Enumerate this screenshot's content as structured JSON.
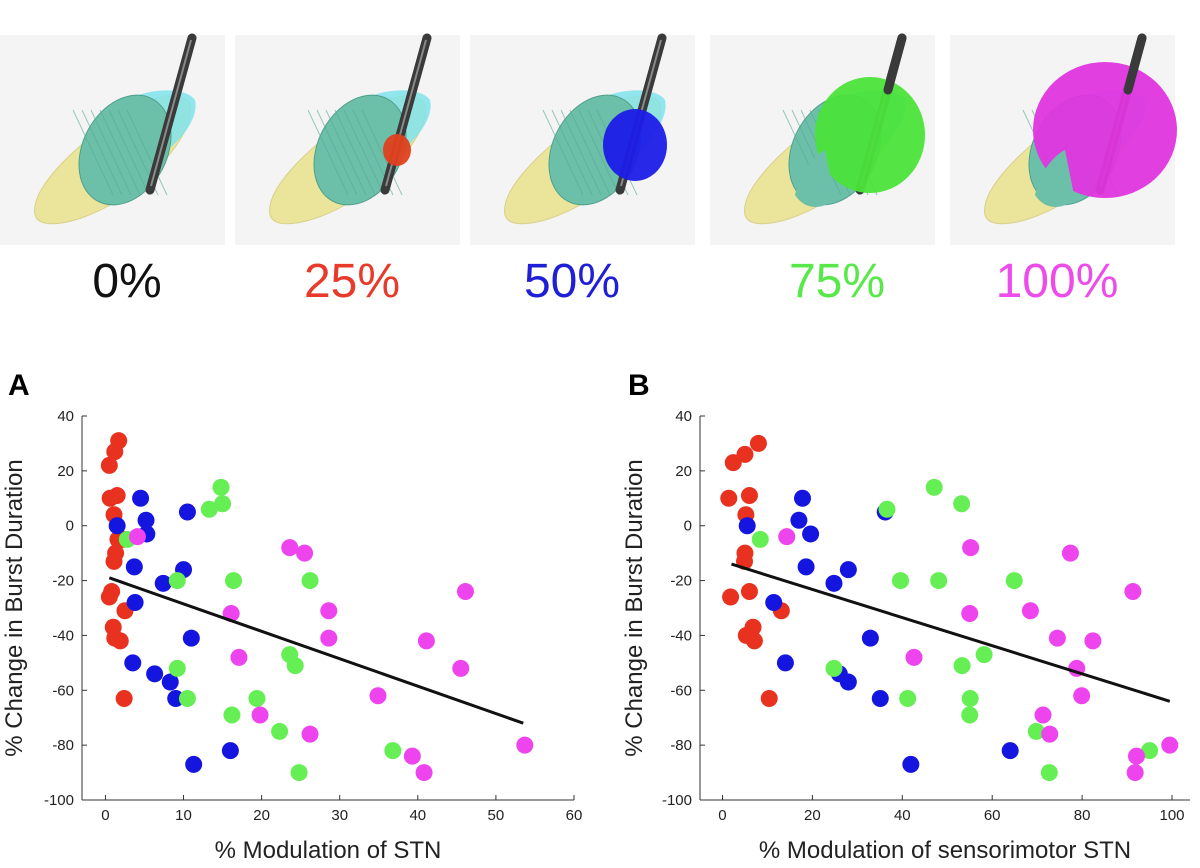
{
  "renderings": {
    "colors": {
      "electrode": "#3a3a3a",
      "stn": "#6cbfa8",
      "sensorimotor": "#eae59a",
      "associative": "#7fe3ec"
    },
    "items": [
      {
        "label": "0%",
        "color": "#111111",
        "vta_color": null
      },
      {
        "label": "25%",
        "color": "#e83a2a",
        "vta_color": "#e0401e"
      },
      {
        "label": "50%",
        "color": "#1f1fd8",
        "vta_color": "#1c1ce8"
      },
      {
        "label": "75%",
        "color": "#58e84a",
        "vta_color": "#4be33a"
      },
      {
        "label": "100%",
        "color": "#ec4ce8",
        "vta_color": "#e035df"
      }
    ]
  },
  "group_colors": {
    "25%": "#e8321f",
    "50%": "#1515e0",
    "75%": "#66ee55",
    "100%": "#ee44ee"
  },
  "chart_data": [
    {
      "panel": "A",
      "type": "scatter",
      "xlabel": "% Modulation of STN",
      "ylabel": "% Change in Burst Duration",
      "xlim": [
        -3,
        60
      ],
      "ylim": [
        -100,
        40
      ],
      "xticks": [
        0,
        10,
        20,
        30,
        40,
        50,
        60
      ],
      "yticks": [
        -100,
        -80,
        -60,
        -40,
        -20,
        0,
        20,
        40
      ],
      "grid": false,
      "fit_line": {
        "x": [
          0.5,
          53.5
        ],
        "y": [
          -19,
          -72
        ]
      },
      "series": [
        {
          "group": "25%",
          "points": [
            [
              1.7,
              31
            ],
            [
              1.2,
              27
            ],
            [
              0.5,
              22
            ],
            [
              0.6,
              10
            ],
            [
              1.5,
              11
            ],
            [
              1.1,
              4
            ],
            [
              1.6,
              -5
            ],
            [
              1.3,
              -10
            ],
            [
              1.1,
              -13
            ],
            [
              2.2,
              -5
            ],
            [
              0.8,
              -24
            ],
            [
              0.5,
              -26
            ],
            [
              2.5,
              -31
            ],
            [
              1.0,
              -37
            ],
            [
              1.2,
              -41
            ],
            [
              1.9,
              -42
            ],
            [
              2.4,
              -63
            ]
          ]
        },
        {
          "group": "50%",
          "points": [
            [
              4.5,
              10
            ],
            [
              1.5,
              0
            ],
            [
              5.2,
              2
            ],
            [
              5.3,
              -3
            ],
            [
              10.5,
              5
            ],
            [
              3.7,
              -15
            ],
            [
              10.0,
              -16
            ],
            [
              7.4,
              -21
            ],
            [
              3.8,
              -28
            ],
            [
              11,
              -41
            ],
            [
              3.5,
              -50
            ],
            [
              6.3,
              -54
            ],
            [
              8.3,
              -57
            ],
            [
              9.0,
              -63
            ],
            [
              16,
              -82
            ],
            [
              11.3,
              -87
            ]
          ]
        },
        {
          "group": "75%",
          "points": [
            [
              14.8,
              14
            ],
            [
              15.0,
              8
            ],
            [
              13.3,
              6
            ],
            [
              2.8,
              -5
            ],
            [
              16.4,
              -20
            ],
            [
              9.2,
              -20
            ],
            [
              26.2,
              -20
            ],
            [
              23.6,
              -47
            ],
            [
              24.3,
              -51
            ],
            [
              9.2,
              -52
            ],
            [
              10.5,
              -63
            ],
            [
              19.4,
              -63
            ],
            [
              16.2,
              -69
            ],
            [
              22.3,
              -75
            ],
            [
              36.8,
              -82
            ],
            [
              24.8,
              -90
            ]
          ]
        },
        {
          "group": "100%",
          "points": [
            [
              4.1,
              -4
            ],
            [
              23.6,
              -8
            ],
            [
              25.5,
              -10
            ],
            [
              46.1,
              -24
            ],
            [
              16.1,
              -32
            ],
            [
              28.6,
              -31
            ],
            [
              28.6,
              -41
            ],
            [
              41.1,
              -42
            ],
            [
              17.1,
              -48
            ],
            [
              45.5,
              -52
            ],
            [
              34.9,
              -62
            ],
            [
              19.8,
              -69
            ],
            [
              26.2,
              -76
            ],
            [
              39.3,
              -84
            ],
            [
              53.7,
              -80
            ],
            [
              40.8,
              -90
            ]
          ]
        }
      ]
    },
    {
      "panel": "B",
      "type": "scatter",
      "xlabel": "% Modulation of sensorimotor STN",
      "ylabel": "% Change in Burst Duration",
      "xlim": [
        -5,
        104
      ],
      "ylim": [
        -100,
        40
      ],
      "xticks": [
        0,
        20,
        40,
        60,
        80,
        100
      ],
      "yticks": [
        -100,
        -80,
        -60,
        -40,
        -20,
        0,
        20,
        40
      ],
      "grid": false,
      "fit_line": {
        "x": [
          2,
          99.5
        ],
        "y": [
          -14,
          -64
        ]
      },
      "series": [
        {
          "group": "25%",
          "points": [
            [
              8.0,
              30
            ],
            [
              5.0,
              26
            ],
            [
              2.4,
              23
            ],
            [
              6.0,
              11
            ],
            [
              1.4,
              10
            ],
            [
              5.2,
              4
            ],
            [
              5.0,
              -10
            ],
            [
              4.9,
              -13
            ],
            [
              6.0,
              -24
            ],
            [
              1.8,
              -26
            ],
            [
              13.1,
              -31
            ],
            [
              6.8,
              -37
            ],
            [
              5.3,
              -40
            ],
            [
              7.1,
              -42
            ],
            [
              10.4,
              -63
            ]
          ]
        },
        {
          "group": "50%",
          "points": [
            [
              17.8,
              10
            ],
            [
              17.0,
              2
            ],
            [
              5.5,
              0
            ],
            [
              19.6,
              -3
            ],
            [
              36.2,
              5
            ],
            [
              18.6,
              -15
            ],
            [
              28.0,
              -16
            ],
            [
              24.8,
              -21
            ],
            [
              11.4,
              -28
            ],
            [
              32.9,
              -41
            ],
            [
              14.0,
              -50
            ],
            [
              26.0,
              -54
            ],
            [
              28.0,
              -57
            ],
            [
              35.1,
              -63
            ],
            [
              64.0,
              -82
            ],
            [
              41.9,
              -87
            ]
          ]
        },
        {
          "group": "75%",
          "points": [
            [
              47.1,
              14
            ],
            [
              53.2,
              8
            ],
            [
              36.6,
              6
            ],
            [
              8.4,
              -5
            ],
            [
              39.6,
              -20
            ],
            [
              48.1,
              -20
            ],
            [
              64.9,
              -20
            ],
            [
              58.2,
              -47
            ],
            [
              53.3,
              -51
            ],
            [
              24.8,
              -52
            ],
            [
              55.1,
              -63
            ],
            [
              41.2,
              -63
            ],
            [
              55.0,
              -69
            ],
            [
              69.8,
              -75
            ],
            [
              95.0,
              -82
            ],
            [
              72.7,
              -90
            ]
          ]
        },
        {
          "group": "100%",
          "points": [
            [
              14.3,
              -4
            ],
            [
              55.2,
              -8
            ],
            [
              77.4,
              -10
            ],
            [
              91.3,
              -24
            ],
            [
              55.0,
              -32
            ],
            [
              68.5,
              -31
            ],
            [
              74.5,
              -41
            ],
            [
              82.4,
              -42
            ],
            [
              42.6,
              -48
            ],
            [
              78.8,
              -52
            ],
            [
              79.9,
              -62
            ],
            [
              71.3,
              -69
            ],
            [
              72.8,
              -76
            ],
            [
              92.1,
              -84
            ],
            [
              99.5,
              -80
            ],
            [
              91.8,
              -90
            ]
          ]
        }
      ]
    }
  ]
}
